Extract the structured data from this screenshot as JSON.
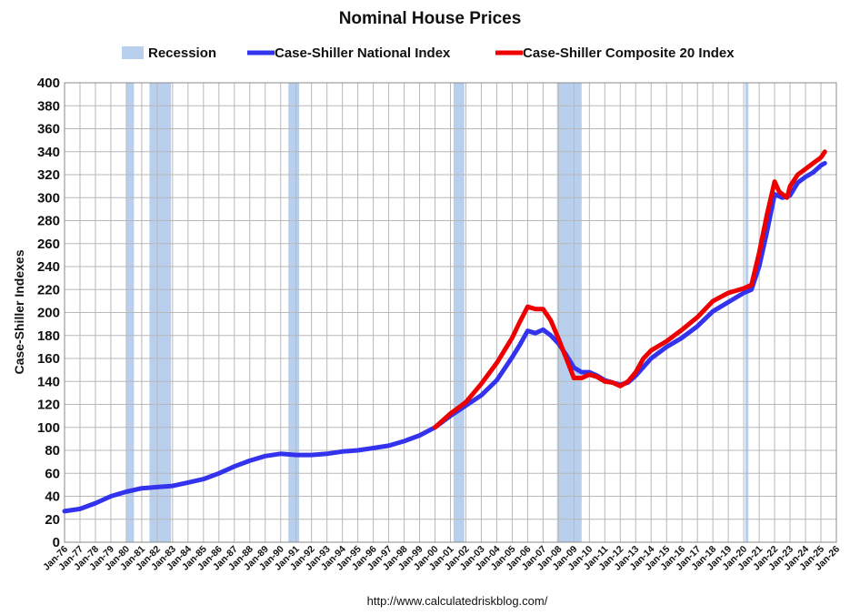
{
  "chart_data": {
    "type": "line",
    "title": "Nominal House Prices",
    "ylabel": "Case-Shiller Indexes",
    "xlabel": "",
    "source": "http://www.calculatedriskblog.com/",
    "ylim": [
      0,
      400
    ],
    "yticks": [
      0,
      20,
      40,
      60,
      80,
      100,
      120,
      140,
      160,
      180,
      200,
      220,
      240,
      260,
      280,
      300,
      320,
      340,
      360,
      380,
      400
    ],
    "xlim": [
      1976,
      2026
    ],
    "xticks": [
      "Jan-76",
      "Jan-77",
      "Jan-78",
      "Jan-79",
      "Jan-80",
      "Jan-81",
      "Jan-82",
      "Jan-83",
      "Jan-84",
      "Jan-85",
      "Jan-86",
      "Jan-87",
      "Jan-88",
      "Jan-89",
      "Jan-90",
      "Jan-91",
      "Jan-92",
      "Jan-93",
      "Jan-94",
      "Jan-95",
      "Jan-96",
      "Jan-97",
      "Jan-98",
      "Jan-99",
      "Jan-00",
      "Jan-01",
      "Jan-02",
      "Jan-03",
      "Jan-04",
      "Jan-05",
      "Jan-06",
      "Jan-07",
      "Jan-08",
      "Jan-09",
      "Jan-10",
      "Jan-11",
      "Jan-12",
      "Jan-13",
      "Jan-14",
      "Jan-15",
      "Jan-16",
      "Jan-17",
      "Jan-18",
      "Jan-19",
      "Jan-20",
      "Jan-21",
      "Jan-22",
      "Jan-23",
      "Jan-24",
      "Jan-25",
      "Jan-26"
    ],
    "grid": true,
    "legend_position": "top",
    "legend": [
      {
        "label": "Recession",
        "kind": "band",
        "color": "#b8d0ee"
      },
      {
        "label": "Case-Shiller National Index",
        "kind": "line",
        "color": "#3333ee"
      },
      {
        "label": "Case-Shiller Composite 20 Index",
        "kind": "line",
        "color": "#ee0000"
      }
    ],
    "recessions": [
      {
        "start": 1980.0,
        "end": 1980.5
      },
      {
        "start": 1981.5,
        "end": 1982.9
      },
      {
        "start": 1990.5,
        "end": 1991.2
      },
      {
        "start": 2001.2,
        "end": 2001.9
      },
      {
        "start": 2007.9,
        "end": 2009.5
      },
      {
        "start": 2020.1,
        "end": 2020.3
      }
    ],
    "series": [
      {
        "name": "Case-Shiller National Index",
        "color": "#3333ee",
        "x": [
          1976.0,
          1977.0,
          1978.0,
          1979.0,
          1980.0,
          1981.0,
          1982.0,
          1983.0,
          1984.0,
          1985.0,
          1986.0,
          1987.0,
          1988.0,
          1989.0,
          1990.0,
          1991.0,
          1992.0,
          1993.0,
          1994.0,
          1995.0,
          1996.0,
          1997.0,
          1998.0,
          1999.0,
          2000.0,
          2001.0,
          2002.0,
          2003.0,
          2004.0,
          2005.0,
          2005.5,
          2006.0,
          2006.5,
          2007.0,
          2007.5,
          2008.0,
          2008.5,
          2009.0,
          2009.5,
          2010.0,
          2010.5,
          2011.0,
          2011.5,
          2012.0,
          2012.5,
          2013.0,
          2014.0,
          2015.0,
          2016.0,
          2017.0,
          2018.0,
          2019.0,
          2020.0,
          2020.5,
          2021.0,
          2021.5,
          2022.0,
          2022.5,
          2023.0,
          2023.5,
          2024.0,
          2024.5,
          2025.0,
          2025.25
        ],
        "values": [
          27,
          29,
          34,
          40,
          44,
          47,
          48,
          49,
          52,
          55,
          60,
          66,
          71,
          75,
          77,
          76,
          76,
          77,
          79,
          80,
          82,
          84,
          88,
          93,
          100,
          110,
          119,
          128,
          141,
          161,
          172,
          184,
          182,
          185,
          180,
          173,
          163,
          152,
          148,
          148,
          145,
          141,
          139,
          137,
          139,
          145,
          160,
          170,
          178,
          188,
          201,
          209,
          217,
          220,
          240,
          270,
          303,
          300,
          302,
          313,
          318,
          322,
          328,
          330
        ]
      },
      {
        "name": "Case-Shiller Composite 20 Index",
        "color": "#ee0000",
        "x": [
          2000.0,
          2001.0,
          2002.0,
          2003.0,
          2004.0,
          2005.0,
          2005.5,
          2006.0,
          2006.5,
          2007.0,
          2007.5,
          2008.0,
          2008.5,
          2009.0,
          2009.5,
          2010.0,
          2010.5,
          2011.0,
          2011.5,
          2012.0,
          2012.5,
          2013.0,
          2013.5,
          2014.0,
          2015.0,
          2016.0,
          2017.0,
          2018.0,
          2019.0,
          2020.0,
          2020.5,
          2021.0,
          2021.5,
          2022.0,
          2022.3,
          2022.8,
          2023.0,
          2023.5,
          2024.0,
          2024.5,
          2025.0,
          2025.25
        ],
        "values": [
          100,
          112,
          122,
          138,
          156,
          178,
          192,
          205,
          203,
          203,
          193,
          177,
          160,
          143,
          143,
          146,
          144,
          140,
          139,
          136,
          140,
          148,
          160,
          167,
          175,
          185,
          196,
          210,
          217,
          221,
          224,
          252,
          285,
          314,
          305,
          300,
          310,
          320,
          325,
          330,
          335,
          340
        ]
      }
    ]
  }
}
